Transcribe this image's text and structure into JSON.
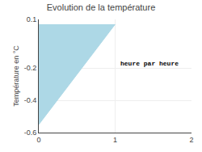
{
  "chart_data": {
    "type": "area",
    "title": "Evolution de la température",
    "ylabel": "Température en °C",
    "x": [
      0,
      0,
      1
    ],
    "values": [
      0.07,
      -0.55,
      0.07
    ],
    "color": "#add8e6",
    "xlim": [
      0,
      2
    ],
    "ylim": [
      -0.6,
      0.1
    ],
    "xticks": [
      0,
      1,
      2
    ],
    "yticks": [
      -0.6,
      -0.4,
      -0.2,
      0.1
    ],
    "grid": true,
    "annotations": [
      {
        "text": "heure par heure",
        "x": 1.05,
        "y": -0.17
      }
    ]
  }
}
